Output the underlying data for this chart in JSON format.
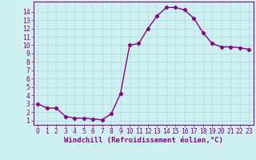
{
  "x": [
    0,
    1,
    2,
    3,
    4,
    5,
    6,
    7,
    8,
    9,
    10,
    11,
    12,
    13,
    14,
    15,
    16,
    17,
    18,
    19,
    20,
    21,
    22,
    23
  ],
  "y": [
    3.0,
    2.5,
    2.5,
    1.5,
    1.3,
    1.3,
    1.2,
    1.1,
    1.8,
    4.2,
    10.0,
    10.2,
    12.0,
    13.5,
    14.5,
    14.5,
    14.2,
    13.2,
    11.5,
    10.2,
    9.8,
    9.8,
    9.7,
    9.5
  ],
  "line_color": "#880088",
  "marker": "D",
  "markersize": 2.2,
  "linewidth": 1.0,
  "xlabel": "Windchill (Refroidissement éolien,°C)",
  "xlim": [
    -0.5,
    23.5
  ],
  "ylim": [
    0.5,
    15.2
  ],
  "yticks": [
    1,
    2,
    3,
    4,
    5,
    6,
    7,
    8,
    9,
    10,
    11,
    12,
    13,
    14
  ],
  "xticks": [
    0,
    1,
    2,
    3,
    4,
    5,
    6,
    7,
    8,
    9,
    10,
    11,
    12,
    13,
    14,
    15,
    16,
    17,
    18,
    19,
    20,
    21,
    22,
    23
  ],
  "bg_color": "#cff0f0",
  "grid_color": "#aadddd",
  "font_color": "#880088",
  "xlabel_fontsize": 6.5,
  "tick_fontsize": 5.8
}
